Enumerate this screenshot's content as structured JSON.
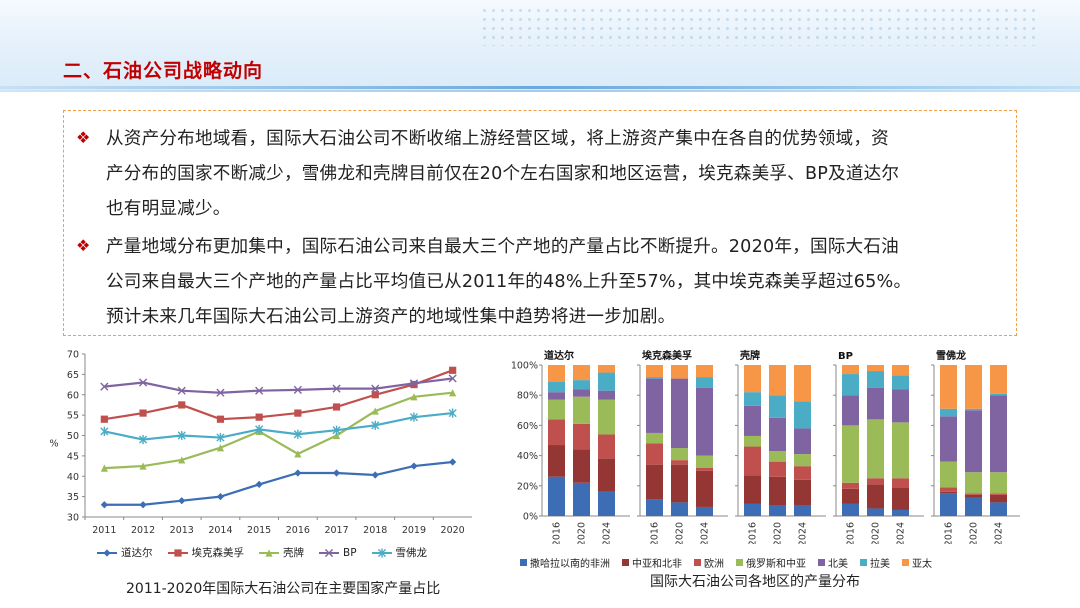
{
  "page": {
    "title": "二、石油公司战略动向",
    "paragraphs": [
      {
        "bullet": "❖",
        "lines": [
          "从资产分布地域看，国际大石油公司不断收缩上游经营区域，将上游资产集中在各自的优势领域，资",
          "产分布的国家不断减少，雪佛龙和壳牌目前仅在20个左右国家和地区运营，埃克森美孚、BP及道达尔",
          "也有明显减少。"
        ]
      },
      {
        "bullet": "❖",
        "lines": [
          "产量地域分布更加集中，国际石油公司来自最大三个产地的产量占比不断提升。2020年，国际大石油",
          "公司来自最大三个产地的产量占比平均值已从2011年的48%上升至57%，其中埃克森美孚超过65%。",
          "预计未来几年国际大石油公司上游资产的地域性集中趋势将进一步加剧。"
        ]
      }
    ]
  },
  "chart_data": [
    {
      "type": "line",
      "caption": "2011-2020年国际大石油公司在主要国家产量占比",
      "x": [
        "2011",
        "2012",
        "2013",
        "2014",
        "2015",
        "2016",
        "2017",
        "2018",
        "2019",
        "2020"
      ],
      "ylabel": "%",
      "ylim": [
        30,
        70
      ],
      "yticks": [
        30,
        35,
        40,
        45,
        50,
        55,
        60,
        65,
        70
      ],
      "grid": false,
      "legend_position": "bottom",
      "series": [
        {
          "name": "道达尔",
          "color": "#3d6eb5",
          "marker": "diamond",
          "values": [
            33,
            33,
            34,
            35,
            38,
            40.8,
            40.8,
            40.3,
            42.5,
            43.5
          ]
        },
        {
          "name": "埃克森美孚",
          "color": "#c0504d",
          "marker": "square",
          "values": [
            54,
            55.5,
            57.5,
            54,
            54.5,
            55.5,
            57,
            60,
            62.5,
            66
          ]
        },
        {
          "name": "壳牌",
          "color": "#9bbb59",
          "marker": "triangle",
          "values": [
            42,
            42.5,
            44,
            47,
            51,
            45.5,
            50,
            56,
            59.5,
            60.5
          ]
        },
        {
          "name": "BP",
          "color": "#8064a2",
          "marker": "x",
          "values": [
            62,
            63,
            61,
            60.5,
            61,
            61.2,
            61.5,
            61.5,
            62.8,
            64
          ]
        },
        {
          "name": "雪佛龙",
          "color": "#4bacc6",
          "marker": "asterisk",
          "values": [
            51,
            49,
            50,
            49.5,
            51.5,
            50.3,
            51.3,
            52.5,
            54.5,
            55.5
          ]
        }
      ]
    },
    {
      "type": "bar",
      "stacked": true,
      "caption": "国际大石油公司各地区的产量分布",
      "ylim": [
        0,
        100
      ],
      "yticks": [
        "0%",
        "20%",
        "40%",
        "60%",
        "80%",
        "100%"
      ],
      "legend_position": "bottom",
      "regions": [
        {
          "name": "撒哈拉以南的非洲",
          "color": "#3d6eb5"
        },
        {
          "name": "中亚和北非",
          "color": "#943634"
        },
        {
          "name": "欧洲",
          "color": "#c0504d"
        },
        {
          "name": "俄罗斯和中亚",
          "color": "#9bbb59"
        },
        {
          "name": "北美",
          "color": "#8064a2"
        },
        {
          "name": "拉美",
          "color": "#4bacc6"
        },
        {
          "name": "亚太",
          "color": "#f79646"
        }
      ],
      "groups": [
        {
          "company": "道达尔",
          "years": [
            "2016",
            "2020",
            "2024"
          ],
          "values": [
            [
              26,
              21,
              17,
              13,
              5,
              7,
              11
            ],
            [
              22,
              22,
              17,
              18,
              5,
              6,
              10
            ],
            [
              16,
              22,
              16,
              23,
              6,
              12,
              5
            ]
          ]
        },
        {
          "company": "埃克森美孚",
          "years": [
            "2016",
            "2020",
            "2024"
          ],
          "values": [
            [
              11,
              23,
              14,
              7,
              36,
              1,
              8
            ],
            [
              9,
              25,
              3,
              8,
              46,
              0,
              9
            ],
            [
              6,
              24,
              2,
              8,
              45,
              7,
              8
            ]
          ]
        },
        {
          "company": "壳牌",
          "years": [
            "2016",
            "2020",
            "2024"
          ],
          "values": [
            [
              8,
              19,
              19,
              7,
              20,
              9,
              18
            ],
            [
              7,
              19,
              10,
              7,
              22,
              15,
              20
            ],
            [
              7,
              17,
              9,
              8,
              17,
              18,
              24
            ]
          ]
        },
        {
          "company": "BP",
          "years": [
            "2016",
            "2020",
            "2024"
          ],
          "values": [
            [
              8,
              10,
              4,
              38,
              20,
              14,
              6
            ],
            [
              5,
              16,
              4,
              39,
              21,
              11,
              4
            ],
            [
              4,
              15,
              6,
              37,
              22,
              9,
              7
            ]
          ]
        },
        {
          "company": "雪佛龙",
          "years": [
            "2016",
            "2020",
            "2024"
          ],
          "values": [
            [
              15,
              1,
              3,
              17,
              30,
              5,
              29
            ],
            [
              12,
              2,
              1,
              14,
              41,
              1,
              29
            ],
            [
              9,
              5,
              1,
              14,
              51,
              1,
              19
            ]
          ]
        }
      ]
    }
  ]
}
